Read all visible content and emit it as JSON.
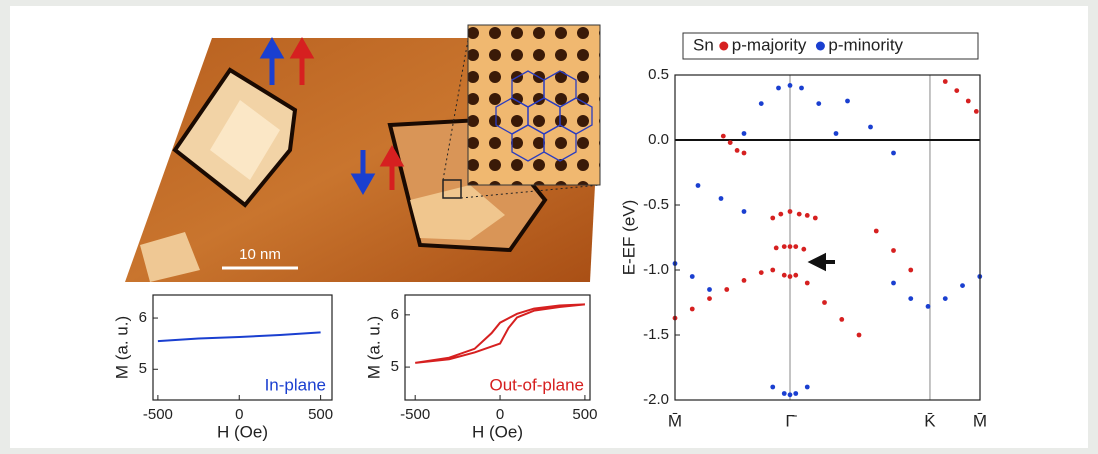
{
  "figure": {
    "scale_bar": "10 nm"
  },
  "chart_data": [
    {
      "type": "line",
      "xlabel": "H (Oe)",
      "ylabel": "M (a. u.)",
      "x": [
        -500,
        -250,
        0,
        250,
        500
      ],
      "series": [
        {
          "name": "In-plane",
          "color": "#1a3fd0",
          "values": [
            5.55,
            5.6,
            5.63,
            5.67,
            5.72
          ]
        }
      ],
      "xlim": [
        -530,
        570
      ],
      "xticks": [
        -500,
        0,
        500
      ],
      "ylim": [
        4.4,
        6.45
      ],
      "yticks": [
        5,
        6
      ],
      "legend": "lower right"
    },
    {
      "type": "line",
      "xlabel": "H (Oe)",
      "ylabel": "M (a. u.)",
      "x": [
        -500,
        -300,
        -150,
        0,
        50,
        100,
        200,
        350,
        500,
        350,
        200,
        100,
        0,
        -50,
        -150,
        -300,
        -500
      ],
      "series": [
        {
          "name": "Out-of-plane",
          "color": "#d62020",
          "values": [
            5.08,
            5.15,
            5.28,
            5.45,
            5.75,
            5.95,
            6.08,
            6.15,
            6.2,
            6.18,
            6.12,
            6.02,
            5.85,
            5.65,
            5.35,
            5.18,
            5.08
          ]
        }
      ],
      "xlim": [
        -560,
        530
      ],
      "xticks": [
        -500,
        0,
        500
      ],
      "ylim": [
        4.37,
        6.38
      ],
      "yticks": [
        5,
        6
      ],
      "legend": "lower right"
    },
    {
      "type": "scatter",
      "ylabel": "E-EF (eV)",
      "legend_title": "Sn",
      "legend": "top",
      "series": [
        {
          "name": "p-majority",
          "color": "#d62020",
          "x": [
            0,
            0.15,
            0.3,
            0.45,
            0.6,
            0.75,
            0.85,
            0.95,
            1.0,
            1.05,
            1.15,
            1.3,
            1.45,
            1.6,
            0.88,
            0.95,
            1.0,
            1.05,
            1.12,
            0.42,
            0.48,
            0.54,
            0.6,
            0.85,
            0.92,
            1.0,
            1.08,
            1.15,
            1.22,
            2.35,
            2.45,
            2.55,
            2.62,
            1.75,
            1.9,
            2.05
          ],
          "values": [
            -1.37,
            -1.3,
            -1.22,
            -1.15,
            -1.08,
            -1.02,
            -1.0,
            -1.04,
            -1.05,
            -1.04,
            -1.1,
            -1.25,
            -1.38,
            -1.5,
            -0.83,
            -0.82,
            -0.82,
            -0.82,
            -0.84,
            0.03,
            -0.02,
            -0.08,
            -0.1,
            -0.6,
            -0.57,
            -0.55,
            -0.57,
            -0.58,
            -0.6,
            0.45,
            0.38,
            0.3,
            0.22,
            -0.7,
            -0.85,
            -1.0
          ]
        },
        {
          "name": "p-minority",
          "color": "#1a3fd0",
          "x": [
            0.6,
            0.75,
            0.9,
            1.0,
            1.1,
            1.25,
            1.4,
            0,
            0.15,
            0.3,
            1.9,
            2.05,
            2.2,
            2.35,
            2.5,
            2.65,
            0.85,
            0.95,
            1.0,
            1.05,
            1.15,
            0.2,
            0.4,
            0.6,
            1.5,
            1.7,
            1.9
          ],
          "values": [
            0.05,
            0.28,
            0.4,
            0.42,
            0.4,
            0.28,
            0.05,
            -0.95,
            -1.05,
            -1.15,
            -1.1,
            -1.22,
            -1.28,
            -1.22,
            -1.12,
            -1.05,
            -1.9,
            -1.95,
            -1.96,
            -1.95,
            -1.9,
            -0.35,
            -0.45,
            -0.55,
            0.3,
            0.1,
            -0.1
          ]
        }
      ],
      "xlim": [
        0,
        2.652
      ],
      "xticks": [
        {
          "value": 0,
          "label": "M̄"
        },
        {
          "value": 1,
          "label": "Γ̄"
        },
        {
          "value": 2.217,
          "label": "K̄"
        },
        {
          "value": 2.652,
          "label": "M̄"
        }
      ],
      "xgrid": true,
      "hlines": [
        0
      ],
      "ylim": [
        -2.0,
        0.5
      ],
      "yticks": [
        {
          "value": 0.5,
          "label": "0.5"
        },
        {
          "value": 0.0,
          "label": "0.0"
        },
        -0.5,
        {
          "value": -1.0,
          "label": "-1.0"
        },
        -1.5,
        {
          "value": -2.0,
          "label": "-2.0"
        }
      ]
    }
  ]
}
